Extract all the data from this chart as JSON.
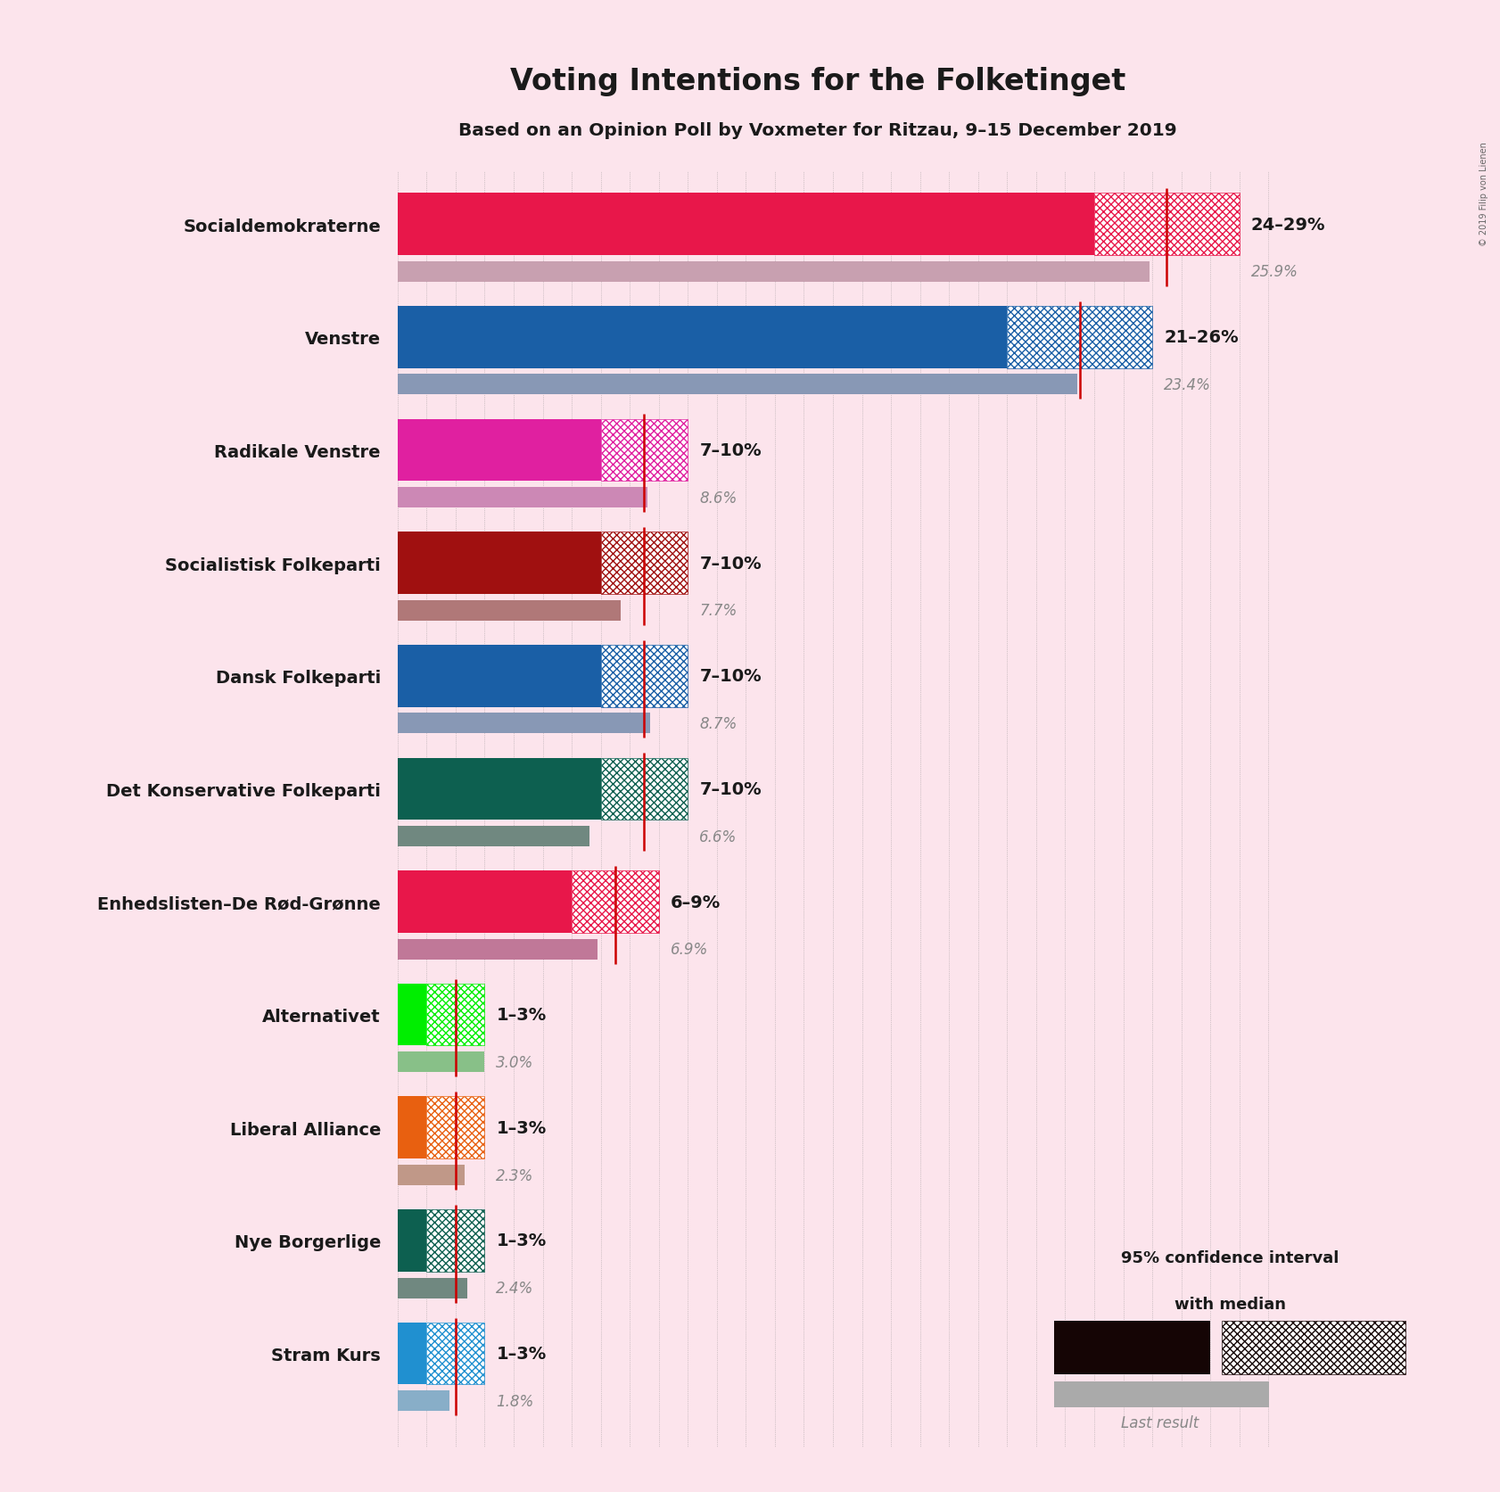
{
  "title": "Voting Intentions for the Folketinget",
  "subtitle": "Based on an Opinion Poll by Voxmeter for Ritzau, 9–15 December 2019",
  "copyright": "© 2019 Filip von Lienen",
  "background_color": "#fce4ec",
  "parties": [
    "Socialdemokraterne",
    "Venstre",
    "Radikale Venstre",
    "Socialistisk Folkeparti",
    "Dansk Folkeparti",
    "Det Konservative Folkeparti",
    "Enhedslisten–De Rød-Grønne",
    "Alternativet",
    "Liberal Alliance",
    "Nye Borgerlige",
    "Stram Kurs"
  ],
  "ci_low": [
    24,
    21,
    7,
    7,
    7,
    7,
    6,
    1,
    1,
    1,
    1
  ],
  "ci_high": [
    29,
    26,
    10,
    10,
    10,
    10,
    9,
    3,
    3,
    3,
    3
  ],
  "median": [
    26.5,
    23.5,
    8.5,
    8.5,
    8.5,
    8.5,
    7.5,
    2.0,
    2.0,
    2.0,
    2.0
  ],
  "last_result": [
    25.9,
    23.4,
    8.6,
    7.7,
    8.7,
    6.6,
    6.9,
    3.0,
    2.3,
    2.4,
    1.8
  ],
  "ci_labels": [
    "24–29%",
    "21–26%",
    "7–10%",
    "7–10%",
    "7–10%",
    "7–10%",
    "6–9%",
    "1–3%",
    "1–3%",
    "1–3%",
    "1–3%"
  ],
  "bar_colors": [
    "#e8174a",
    "#1a5fa6",
    "#e020a0",
    "#a01010",
    "#1a5fa6",
    "#0d6050",
    "#e8174a",
    "#00ee00",
    "#e86010",
    "#0d6050",
    "#2090d0"
  ],
  "last_result_bar_colors": [
    "#c8a0b0",
    "#8898b5",
    "#cc88b5",
    "#b07878",
    "#8898b5",
    "#708880",
    "#c07898",
    "#88c088",
    "#c09888",
    "#708880",
    "#88aec8"
  ],
  "xlim_max": 31,
  "legend_text_line1": "95% confidence interval",
  "legend_text_line2": "with median",
  "legend_last_text": "Last result"
}
